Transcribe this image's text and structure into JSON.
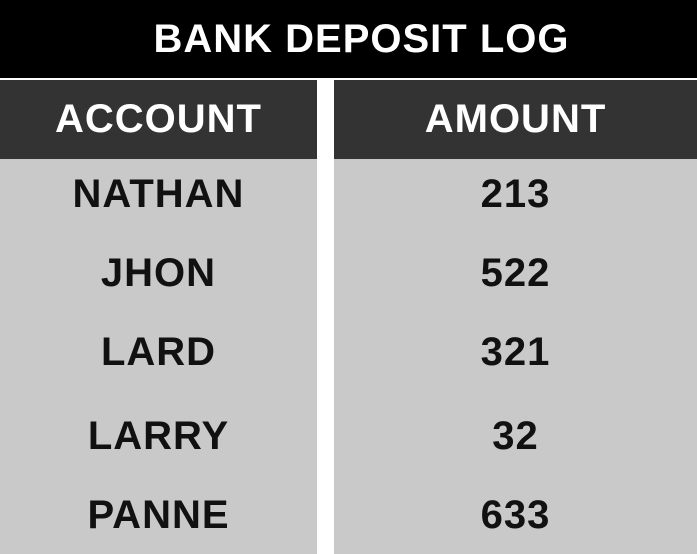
{
  "title": "BANK DEPOSIT LOG",
  "columns": [
    "ACCOUNT",
    "AMOUNT"
  ],
  "rows": [
    {
      "account": "NATHAN",
      "amount": "213"
    },
    {
      "account": "JHON",
      "amount": "522"
    },
    {
      "account": "LARD",
      "amount": "321"
    },
    {
      "account": "LARRY",
      "amount": "32"
    },
    {
      "account": "PANNE",
      "amount": "633"
    }
  ],
  "colors": {
    "title_bg": "#000000",
    "header_bg": "#333333",
    "cell_bg": "#c9c9c9",
    "divider": "#ffffff"
  }
}
